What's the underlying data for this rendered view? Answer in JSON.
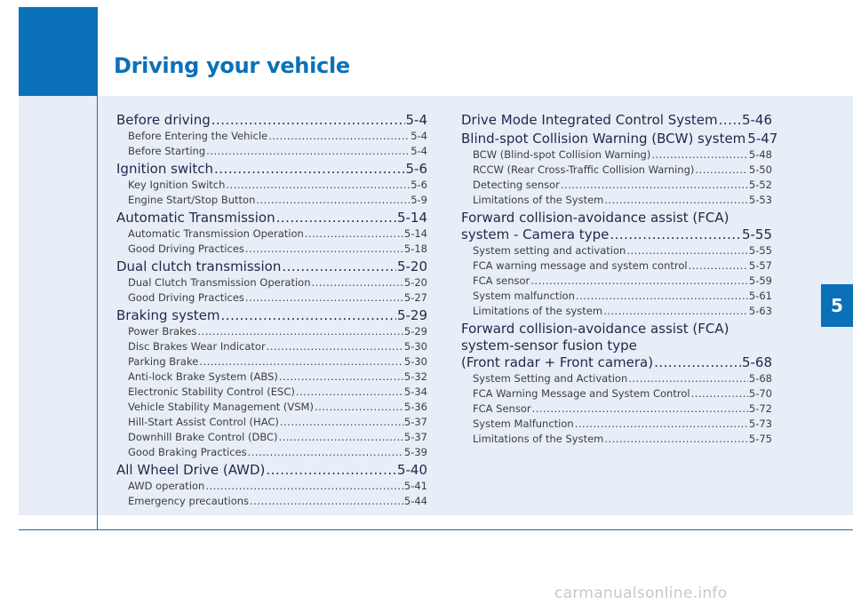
{
  "header": {
    "title": "Driving your vehicle",
    "chapter_tab": "5"
  },
  "toc_left": [
    {
      "title": "Before driving",
      "page": "5-4",
      "items": [
        {
          "label": "Before Entering the Vehicle",
          "page": "5-4"
        },
        {
          "label": "Before Starting",
          "page": "5-4"
        }
      ]
    },
    {
      "title": "Ignition switch",
      "page": "5-6",
      "items": [
        {
          "label": "Key Ignition Switch",
          "page": "5-6"
        },
        {
          "label": "Engine Start/Stop Button",
          "page": "5-9"
        }
      ]
    },
    {
      "title": "Automatic Transmission",
      "page": "5-14",
      "items": [
        {
          "label": "Automatic Transmission Operation",
          "page": "5-14"
        },
        {
          "label": "Good Driving Practices",
          "page": "5-18"
        }
      ]
    },
    {
      "title": "Dual clutch transmission",
      "page": "5-20",
      "items": [
        {
          "label": "Dual Clutch Transmission Operation",
          "page": "5-20"
        },
        {
          "label": "Good Driving Practices",
          "page": "5-27"
        }
      ]
    },
    {
      "title": "Braking system",
      "page": "5-29",
      "items": [
        {
          "label": "Power Brakes",
          "page": "5-29"
        },
        {
          "label": "Disc Brakes Wear Indicator",
          "page": "5-30"
        },
        {
          "label": "Parking Brake",
          "page": "5-30"
        },
        {
          "label": "Anti-lock Brake System (ABS)",
          "page": "5-32"
        },
        {
          "label": "Electronic Stability Control (ESC)",
          "page": "5-34"
        },
        {
          "label": "Vehicle Stability Management (VSM)",
          "page": "5-36"
        },
        {
          "label": "Hill-Start Assist Control (HAC)",
          "page": "5-37"
        },
        {
          "label": "Downhill Brake Control (DBC)",
          "page": "5-37"
        },
        {
          "label": "Good Braking Practices",
          "page": "5-39"
        }
      ]
    },
    {
      "title": "All Wheel Drive (AWD)",
      "page": "5-40",
      "items": [
        {
          "label": "AWD operation",
          "page": "5-41"
        },
        {
          "label": "Emergency precautions",
          "page": "5-44"
        }
      ]
    }
  ],
  "toc_right": [
    {
      "title": "Drive Mode Integrated Control System",
      "page": "5-46",
      "items": []
    },
    {
      "title": "Blind-spot Collision Warning (BCW) system",
      "page": "5-47",
      "items": [
        {
          "label": "BCW (Blind-spot Collision Warning)",
          "page": "5-48"
        },
        {
          "label": "RCCW (Rear Cross-Traffic Collision Warning)",
          "page": "5-50"
        },
        {
          "label": "Detecting sensor",
          "page": "5-52"
        },
        {
          "label": "Limitations of the System",
          "page": "5-53"
        }
      ]
    },
    {
      "title_lines": [
        "Forward collision-avoidance assist (FCA)"
      ],
      "title": "system - Camera type",
      "page": "5-55",
      "items": [
        {
          "label": "System setting and activation",
          "page": "5-55"
        },
        {
          "label": "FCA warning message and system control",
          "page": "5-57"
        },
        {
          "label": "FCA sensor",
          "page": "5-59"
        },
        {
          "label": "System malfunction",
          "page": "5-61"
        },
        {
          "label": "Limitations of the system",
          "page": "5-63"
        }
      ]
    },
    {
      "title_lines": [
        "Forward collision-avoidance assist (FCA)",
        "system-sensor fusion type"
      ],
      "title": "(Front radar + Front camera)",
      "page": "5-68",
      "items": [
        {
          "label": "System Setting and Activation",
          "page": "5-68"
        },
        {
          "label": "FCA Warning Message and System Control",
          "page": "5-70"
        },
        {
          "label": "FCA Sensor",
          "page": "5-72"
        },
        {
          "label": "System Malfunction",
          "page": "5-73"
        },
        {
          "label": "Limitations of the System",
          "page": "5-75"
        }
      ]
    }
  ],
  "watermark": "carmanualsonline.info"
}
